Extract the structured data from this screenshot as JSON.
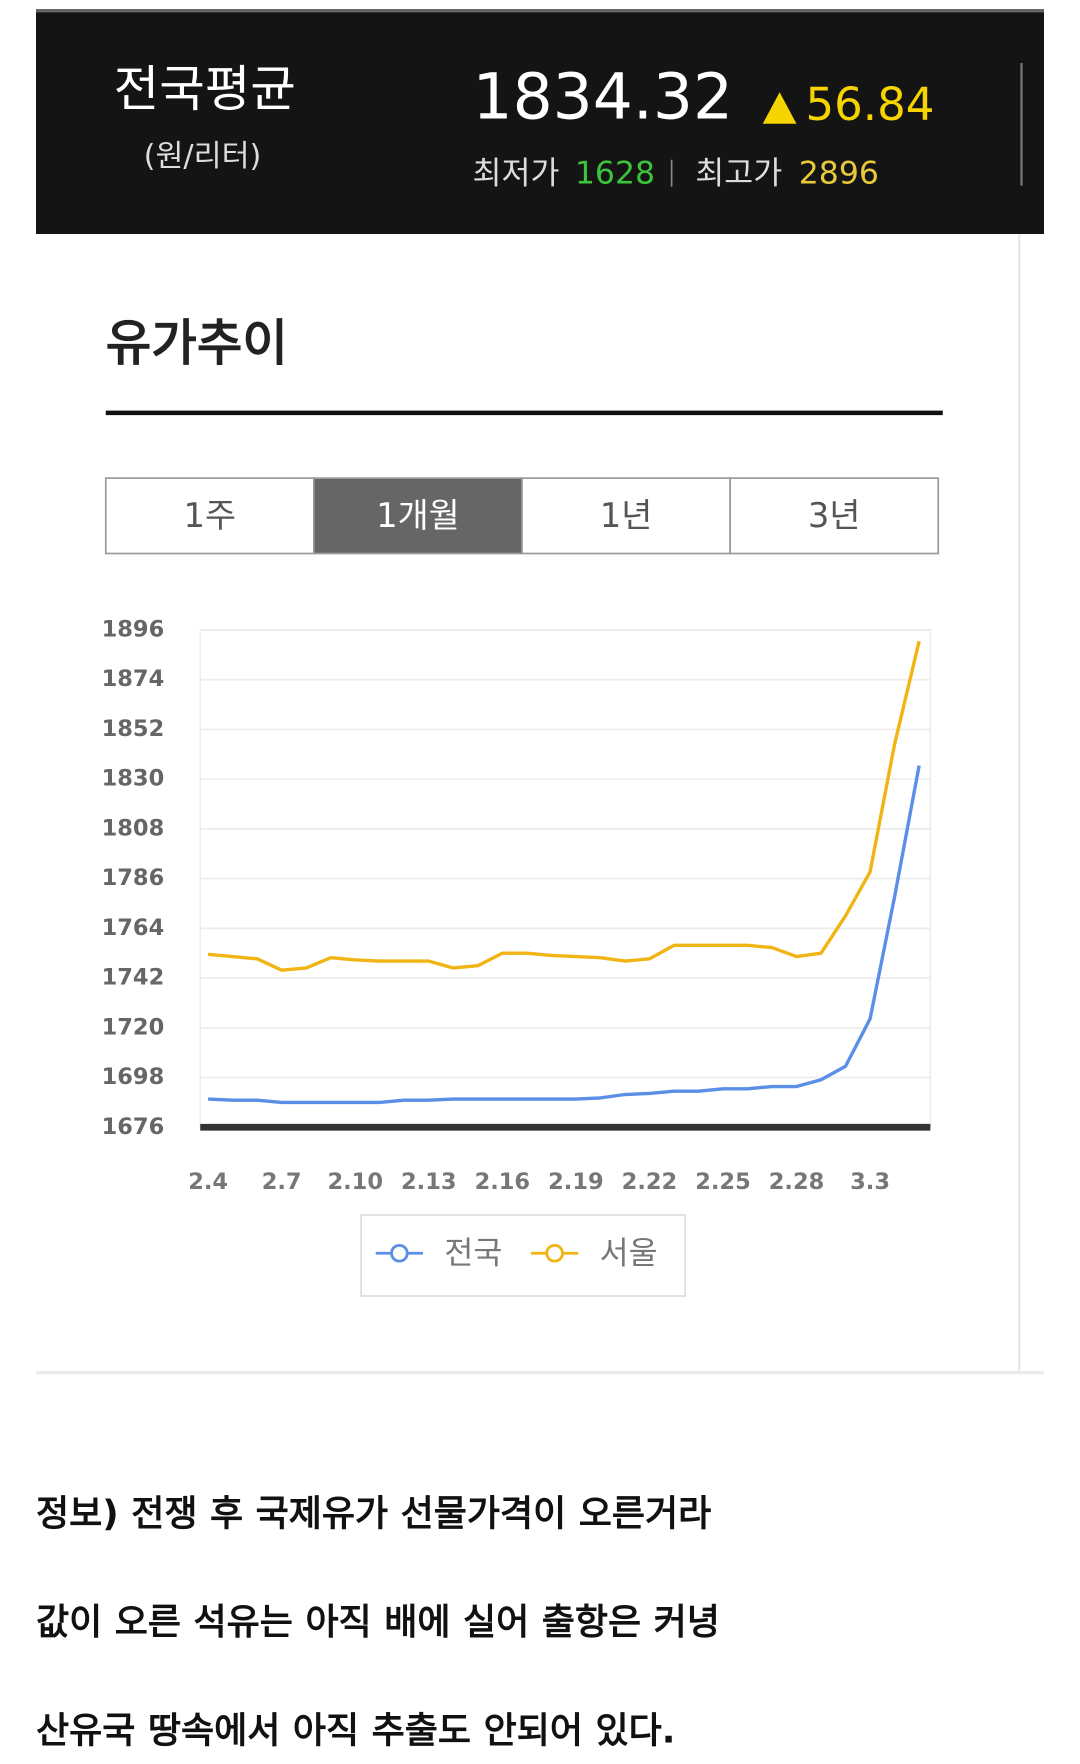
{
  "header": {
    "title": "전국평균",
    "unit": "(원/리터)",
    "price": 1834.32,
    "change": 56.84,
    "low_label": "최저가",
    "low": 1628,
    "high_label": "최고가",
    "high": 2896
  },
  "section_title": "유가추이",
  "tabs": {
    "items": [
      "1주",
      "1개월",
      "1년",
      "3년"
    ],
    "active": 1
  },
  "chart_data": {
    "type": "line",
    "categories": [
      "2.4",
      null,
      null,
      "2.7",
      null,
      null,
      "2.10",
      null,
      null,
      "2.13",
      null,
      null,
      "2.16",
      null,
      null,
      "2.19",
      null,
      null,
      "2.22",
      null,
      null,
      "2.25",
      null,
      null,
      "2.28",
      null,
      null,
      "3.3",
      null,
      null
    ],
    "series": [
      {
        "name": "전국",
        "color": "#5b8ee6",
        "values": [
          1688.5,
          1688,
          1688,
          1687,
          1687,
          1687,
          1687,
          1687,
          1688,
          1688,
          1688.5,
          1688.5,
          1688.5,
          1688.5,
          1688.5,
          1688.5,
          1689,
          1690.5,
          1691,
          1692,
          1692,
          1693,
          1693,
          1694,
          1694,
          1697,
          1703,
          1724,
          1778,
          1836
        ]
      },
      {
        "name": "서울",
        "color": "#f0b415",
        "values": [
          1752.5,
          1751.5,
          1750.5,
          1745.5,
          1746.5,
          1751,
          1750,
          1749.5,
          1749.5,
          1749.5,
          1746.5,
          1747.5,
          1753,
          1753,
          1752,
          1751.5,
          1751,
          1749.5,
          1750.5,
          1756.5,
          1756.5,
          1756.5,
          1756.5,
          1755.5,
          1751.5,
          1753,
          1769.5,
          1789,
          1845.5,
          1891
        ]
      }
    ],
    "ylim": [
      1676,
      1896
    ],
    "yticks": [
      1676,
      1698,
      1720,
      1742,
      1764,
      1786,
      1808,
      1830,
      1852,
      1874,
      1896
    ],
    "grid": true,
    "legend": "bottom"
  },
  "paragraphs": [
    "정보) 전쟁 후 국제유가 선물가격이 오른거라",
    "값이 오른 석유는 아직 배에 실어 출항은 커녕",
    "산유국 땅속에서 아직 추출도 안되어 있다."
  ]
}
